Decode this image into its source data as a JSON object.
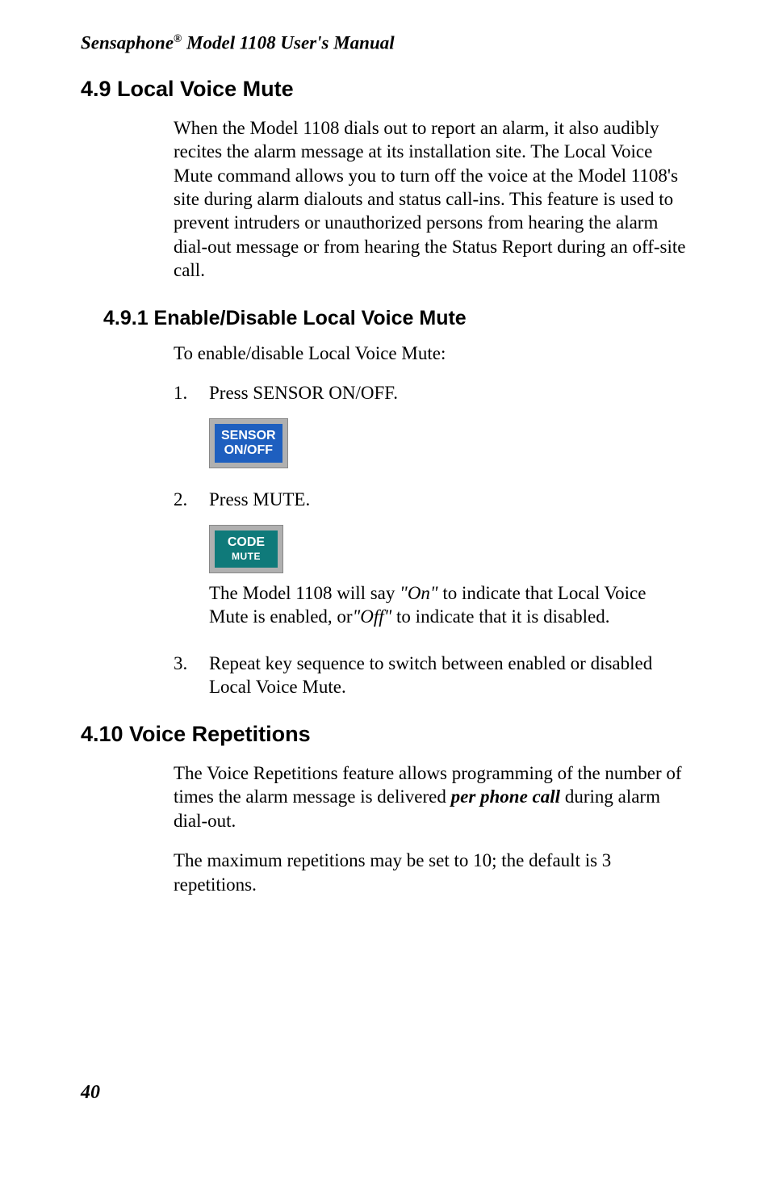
{
  "running_head": {
    "prefix": "Sensaphone",
    "reg": "®",
    "rest": " Model 1108 User's Manual"
  },
  "s49": {
    "heading": "4.9  Local Voice Mute",
    "para": "When the Model 1108 dials out to report an alarm, it also audibly recites the alarm message at its installation site. The Local Voice Mute command allows you to turn off the voice at the Model 1108's site during alarm dialouts and status call-ins. This feature is used to prevent intruders or unauthorized persons from hearing the alarm dial-out message or from hearing the Status Report during an off-site call."
  },
  "s491": {
    "heading": "4.9.1  Enable/Disable Local Voice Mute",
    "intro": "To enable/disable Local Voice Mute:",
    "step1_num": "1.",
    "step1_text": "Press SENSOR ON/OFF.",
    "btn1_line1": "SENSOR",
    "btn1_line2": "ON/OFF",
    "step2_num": "2.",
    "step2_text": "Press MUTE.",
    "btn2_line1": "CODE",
    "btn2_line2": "MUTE",
    "step2_after_a": "The Model 1108 will say ",
    "step2_on": "\"On\"",
    "step2_after_b": " to indicate that Local Voice Mute is enabled, or",
    "step2_off": "\"Off\"",
    "step2_after_c": " to indicate that it is disabled.",
    "step3_num": "3.",
    "step3_text": "Repeat key sequence to switch between enabled or disabled Local Voice Mute."
  },
  "s410": {
    "heading": "4.10  Voice Repetitions",
    "p1_a": "The Voice Repetitions feature allows programming of the number of times the alarm message is delivered ",
    "p1_b": "per phone call",
    "p1_c": " during alarm dial-out.",
    "p2": "The maximum repetitions may be set to 10; the default is 3 repetitions."
  },
  "page_number": "40",
  "colors": {
    "sensor_btn": "#1e5fbf",
    "code_btn": "#0f7a7a",
    "btn_border": "#b0b0b0",
    "text": "#000000",
    "bg": "#ffffff"
  },
  "fonts": {
    "body_family": "Times New Roman",
    "heading_family": "Arial",
    "body_size_pt": 17,
    "h2_size_pt": 20,
    "h3_size_pt": 19,
    "running_head_size_pt": 17
  }
}
